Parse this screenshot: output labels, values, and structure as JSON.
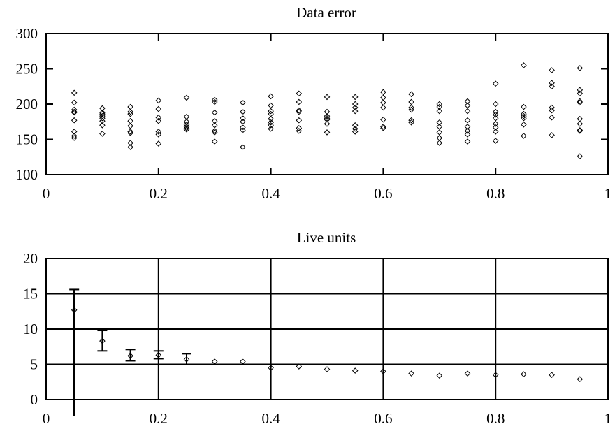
{
  "chart_data": [
    {
      "type": "scatter",
      "title": "Data error",
      "xlabel": "",
      "ylabel": "",
      "xlim": [
        0,
        1
      ],
      "ylim": [
        100,
        300
      ],
      "xticks": [
        "0",
        "0.2",
        "0.4",
        "0.6",
        "0.8",
        "1"
      ],
      "yticks": [
        "100",
        "150",
        "200",
        "250",
        "300"
      ],
      "grid": false,
      "marker": "diamond",
      "points": [
        {
          "x": 0.05,
          "ys": [
            216,
            202,
            192,
            189,
            188,
            177,
            161,
            155,
            152
          ]
        },
        {
          "x": 0.1,
          "ys": [
            194,
            188,
            186,
            183,
            180,
            176,
            170,
            158
          ]
        },
        {
          "x": 0.15,
          "ys": [
            196,
            189,
            186,
            176,
            169,
            161,
            159,
            145,
            139
          ]
        },
        {
          "x": 0.2,
          "ys": [
            205,
            193,
            181,
            176,
            161,
            157,
            144
          ]
        },
        {
          "x": 0.25,
          "ys": [
            209,
            182,
            175,
            171,
            168,
            166,
            164
          ]
        },
        {
          "x": 0.3,
          "ys": [
            206,
            203,
            188,
            176,
            170,
            162,
            160,
            147
          ]
        },
        {
          "x": 0.35,
          "ys": [
            202,
            189,
            180,
            175,
            167,
            163,
            139
          ]
        },
        {
          "x": 0.4,
          "ys": [
            211,
            198,
            190,
            186,
            179,
            174,
            170,
            165
          ]
        },
        {
          "x": 0.45,
          "ys": [
            215,
            203,
            191,
            189,
            177,
            166,
            162
          ]
        },
        {
          "x": 0.5,
          "ys": [
            210,
            189,
            183,
            180,
            178,
            172,
            160
          ]
        },
        {
          "x": 0.55,
          "ys": [
            210,
            200,
            195,
            190,
            170,
            165,
            161
          ]
        },
        {
          "x": 0.6,
          "ys": [
            217,
            209,
            202,
            195,
            178,
            168,
            166
          ]
        },
        {
          "x": 0.65,
          "ys": [
            214,
            203,
            195,
            192,
            177,
            174
          ]
        },
        {
          "x": 0.7,
          "ys": [
            200,
            196,
            190,
            174,
            168,
            160,
            152,
            145
          ]
        },
        {
          "x": 0.75,
          "ys": [
            204,
            198,
            190,
            177,
            168,
            162,
            157,
            147
          ]
        },
        {
          "x": 0.8,
          "ys": [
            229,
            200,
            189,
            185,
            180,
            172,
            167,
            161,
            148
          ]
        },
        {
          "x": 0.85,
          "ys": [
            255,
            196,
            186,
            183,
            180,
            171,
            155
          ]
        },
        {
          "x": 0.9,
          "ys": [
            248,
            230,
            225,
            195,
            191,
            181,
            156
          ]
        },
        {
          "x": 0.95,
          "ys": [
            251,
            220,
            215,
            204,
            202,
            179,
            172,
            163,
            162,
            126
          ]
        }
      ]
    },
    {
      "type": "scatter",
      "title": "Live units",
      "xlabel": "",
      "ylabel": "",
      "xlim": [
        0,
        1
      ],
      "ylim": [
        0,
        20
      ],
      "xticks": [
        "0",
        "0.2",
        "0.4",
        "0.6",
        "0.8",
        "1"
      ],
      "yticks": [
        "0",
        "5",
        "10",
        "15",
        "20"
      ],
      "grid": true,
      "marker": "diamond",
      "error_bars": true,
      "points": [
        {
          "x": 0.05,
          "y": 12.7,
          "ylow": -2.3,
          "yhigh": 15.6
        },
        {
          "x": 0.1,
          "y": 8.3,
          "ylow": 6.9,
          "yhigh": 9.8
        },
        {
          "x": 0.15,
          "y": 6.2,
          "ylow": 5.5,
          "yhigh": 7.1
        },
        {
          "x": 0.2,
          "y": 6.3,
          "ylow": 5.8,
          "yhigh": 6.9
        },
        {
          "x": 0.25,
          "y": 5.7,
          "ylow": 5.0,
          "yhigh": 6.5
        },
        {
          "x": 0.3,
          "y": 5.4
        },
        {
          "x": 0.35,
          "y": 5.4
        },
        {
          "x": 0.4,
          "y": 4.5
        },
        {
          "x": 0.45,
          "y": 4.7
        },
        {
          "x": 0.5,
          "y": 4.3
        },
        {
          "x": 0.55,
          "y": 4.1
        },
        {
          "x": 0.6,
          "y": 4.0
        },
        {
          "x": 0.65,
          "y": 3.7
        },
        {
          "x": 0.7,
          "y": 3.4
        },
        {
          "x": 0.75,
          "y": 3.7
        },
        {
          "x": 0.8,
          "y": 3.5
        },
        {
          "x": 0.85,
          "y": 3.6
        },
        {
          "x": 0.9,
          "y": 3.5
        },
        {
          "x": 0.95,
          "y": 2.9
        }
      ]
    }
  ]
}
